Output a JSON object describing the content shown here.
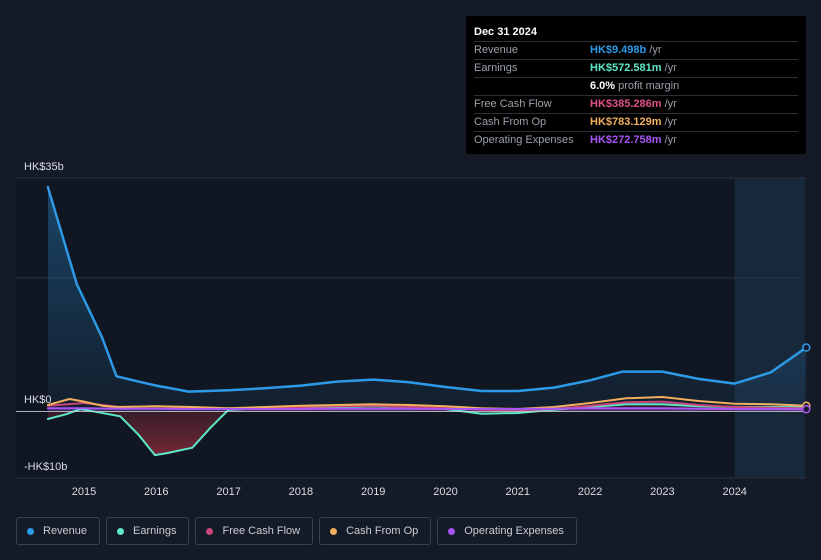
{
  "tooltip": {
    "date": "Dec 31 2024",
    "rows": [
      {
        "label": "Revenue",
        "value": "HK$9.498b",
        "unit": "/yr",
        "color": "#2d9ae8"
      },
      {
        "label": "Earnings",
        "value": "HK$572.581m",
        "unit": "/yr",
        "color": "#5ee8c8"
      },
      {
        "label": "",
        "value": "6.0%",
        "unit": "profit margin",
        "color": "#ffffff"
      },
      {
        "label": "Free Cash Flow",
        "value": "HK$385.286m",
        "unit": "/yr",
        "color": "#e0508a"
      },
      {
        "label": "Cash From Op",
        "value": "HK$783.129m",
        "unit": "/yr",
        "color": "#f0b060"
      },
      {
        "label": "Operating Expenses",
        "value": "HK$272.758m",
        "unit": "/yr",
        "color": "#a855f7"
      }
    ]
  },
  "legend": [
    {
      "label": "Revenue",
      "color": "#2d9ae8"
    },
    {
      "label": "Earnings",
      "color": "#5ee8c8"
    },
    {
      "label": "Free Cash Flow",
      "color": "#c8457a"
    },
    {
      "label": "Cash From Op",
      "color": "#f0b060"
    },
    {
      "label": "Operating Expenses",
      "color": "#a855f7"
    }
  ],
  "chart_data": {
    "type": "line",
    "ylim": [
      -10,
      35
    ],
    "y_tick_labels": [
      {
        "value": 35,
        "label": "HK$35b"
      },
      {
        "value": 0,
        "label": "HK$0"
      },
      {
        "value": -10,
        "label": "-HK$10b"
      }
    ],
    "x_tick_labels": [
      "2015",
      "2016",
      "2017",
      "2018",
      "2019",
      "2020",
      "2021",
      "2022",
      "2023",
      "2024"
    ],
    "highlight_start": 2024.0,
    "series": [
      {
        "name": "Revenue",
        "color": "#2d9ae8",
        "area": true,
        "x": [
          2014.5,
          2014.9,
          2015.25,
          2015.45,
          2015.8,
          2016.0,
          2016.3,
          2016.45,
          2017.0,
          2017.5,
          2018.0,
          2018.5,
          2019.0,
          2019.5,
          2020.0,
          2020.5,
          2021.0,
          2021.5,
          2022.0,
          2022.45,
          2023.0,
          2023.5,
          2024.0,
          2024.5,
          2024.99
        ],
        "y": [
          33.5,
          19,
          11,
          5.2,
          4.3,
          3.8,
          3.2,
          2.9,
          3.1,
          3.4,
          3.8,
          4.4,
          4.7,
          4.3,
          3.6,
          3.0,
          3.0,
          3.5,
          4.6,
          5.9,
          5.9,
          4.8,
          4.1,
          5.8,
          9.5
        ]
      },
      {
        "name": "Earnings",
        "color": "#5ee8c8",
        "area": true,
        "x": [
          2014.5,
          2014.75,
          2014.95,
          2015.2,
          2015.5,
          2015.75,
          2015.98,
          2016.15,
          2016.5,
          2016.75,
          2017.0,
          2017.5,
          2018.0,
          2018.5,
          2019.0,
          2019.5,
          2020.0,
          2020.5,
          2021.0,
          2021.5,
          2022.0,
          2022.5,
          2023.0,
          2023.5,
          2024.0,
          2024.5,
          2024.99
        ],
        "y": [
          -1.2,
          -0.5,
          0.3,
          -0.2,
          -0.8,
          -3.5,
          -6.6,
          -6.3,
          -5.5,
          -2.5,
          0.2,
          0.4,
          0.6,
          0.6,
          0.7,
          0.6,
          0.3,
          -0.4,
          -0.3,
          0.2,
          0.6,
          1.0,
          1.0,
          0.7,
          0.6,
          0.6,
          0.57
        ]
      },
      {
        "name": "Free Cash Flow",
        "color": "#c8457a",
        "area": false,
        "x": [
          2014.5,
          2015.0,
          2015.5,
          2016.0,
          2016.5,
          2017.0,
          2017.5,
          2018.0,
          2018.5,
          2019.0,
          2019.5,
          2020.0,
          2020.5,
          2021.0,
          2021.5,
          2022.0,
          2022.5,
          2023.0,
          2023.5,
          2024.0,
          2024.5,
          2024.99
        ],
        "y": [
          0.8,
          1.2,
          0.6,
          0.7,
          0.5,
          0.3,
          0.5,
          0.6,
          0.7,
          0.8,
          0.6,
          0.4,
          0.2,
          0.1,
          0.3,
          0.8,
          1.3,
          1.4,
          0.9,
          0.6,
          0.5,
          0.39
        ]
      },
      {
        "name": "Cash From Op",
        "color": "#f0b060",
        "area": false,
        "x": [
          2014.5,
          2014.8,
          2015.0,
          2015.25,
          2015.45,
          2016.0,
          2016.5,
          2017.0,
          2017.5,
          2018.0,
          2018.5,
          2019.0,
          2019.5,
          2020.0,
          2020.5,
          2021.0,
          2021.5,
          2022.0,
          2022.5,
          2023.0,
          2023.5,
          2024.0,
          2024.5,
          2024.99
        ],
        "y": [
          0.9,
          1.8,
          1.4,
          0.8,
          0.6,
          0.7,
          0.6,
          0.4,
          0.6,
          0.8,
          0.9,
          1.0,
          0.9,
          0.7,
          0.4,
          0.3,
          0.6,
          1.2,
          1.9,
          2.1,
          1.5,
          1.1,
          1.0,
          0.78
        ]
      },
      {
        "name": "Operating Expenses",
        "color": "#a855f7",
        "area": true,
        "x": [
          2014.5,
          2015.0,
          2015.5,
          2016.0,
          2016.5,
          2017.0,
          2017.5,
          2018.0,
          2018.5,
          2019.0,
          2019.5,
          2020.0,
          2020.5,
          2021.0,
          2021.5,
          2022.0,
          2022.5,
          2023.0,
          2023.5,
          2024.0,
          2024.5,
          2024.99
        ],
        "y": [
          0.4,
          0.4,
          0.35,
          0.35,
          0.3,
          0.3,
          0.3,
          0.3,
          0.35,
          0.35,
          0.35,
          0.3,
          0.3,
          0.3,
          0.35,
          0.4,
          0.4,
          0.4,
          0.35,
          0.3,
          0.3,
          0.27
        ]
      }
    ]
  }
}
